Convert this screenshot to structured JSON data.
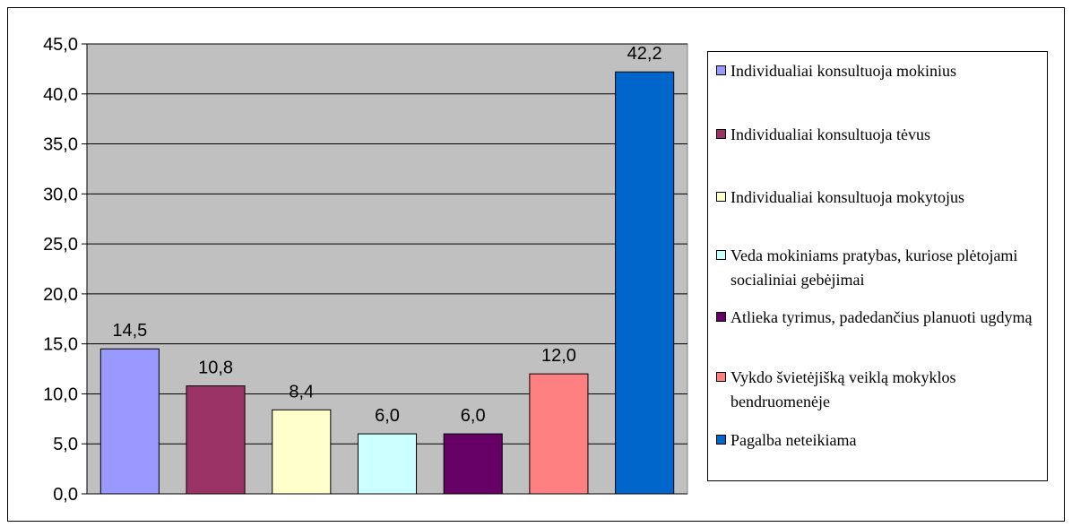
{
  "chart_data": {
    "type": "bar",
    "categories": [
      "Individualiai konsultuoja mokinius",
      "Individualiai konsultuoja tėvus",
      "Individualiai konsultuoja mokytojus",
      "Veda mokiniams pratybas, kuriose plėtojami socialiniai gebėjimai",
      "Atlieka tyrimus, padedančius planuoti ugdymą",
      "Vykdo švietėjišką veiklą mokyklos bendruomenėje",
      "Pagalba neteikiama"
    ],
    "values": [
      14.5,
      10.8,
      8.4,
      6.0,
      6.0,
      12.0,
      42.2
    ],
    "value_labels": [
      "14,5",
      "10,8",
      "8,4",
      "6,0",
      "6,0",
      "12,0",
      "42,2"
    ],
    "colors": [
      "#9999ff",
      "#993366",
      "#ffffcc",
      "#ccffff",
      "#660066",
      "#ff8080",
      "#0066cc"
    ],
    "plot_background": "#c0c0c0",
    "ylim": [
      0,
      45
    ],
    "y_ticks": [
      "0,0",
      "5,0",
      "10,0",
      "15,0",
      "20,0",
      "25,0",
      "30,0",
      "35,0",
      "40,0",
      "45,0"
    ],
    "grid": true,
    "legend_position": "right",
    "title": "",
    "xlabel": "",
    "ylabel": ""
  },
  "legend": {
    "items": [
      "Individualiai konsultuoja mokinius",
      "Individualiai konsultuoja tėvus",
      "Individualiai konsultuoja mokytojus",
      "Veda mokiniams pratybas, kuriose plėtojami socialiniai gebėjimai",
      "Atlieka tyrimus, padedančius planuoti ugdymą",
      "Vykdo švietėjišką veiklą mokyklos bendruomenėje",
      "Pagalba neteikiama"
    ]
  }
}
